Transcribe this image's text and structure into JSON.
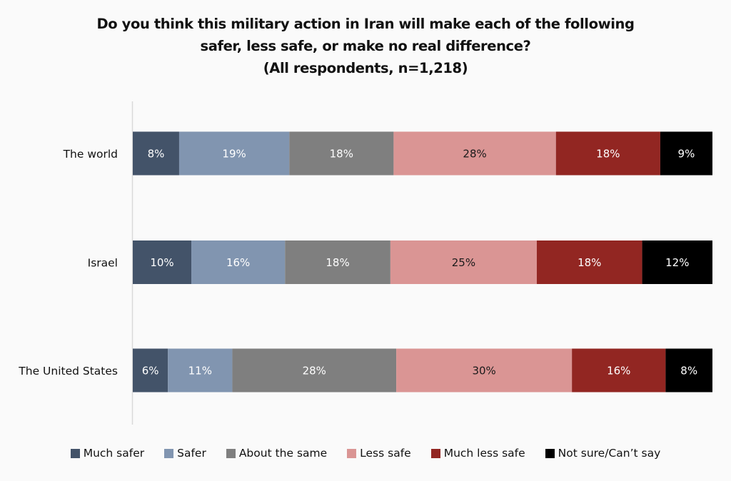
{
  "chart_data": {
    "type": "bar",
    "orientation": "horizontal",
    "stacked": true,
    "title": "Do you think this military action in Iran will make each of the following safer, less safe, or make no real difference?",
    "title_lines": [
      "Do you think this military action in Iran will make each of the following",
      "safer, less safe, or make no real difference?",
      "(All respondents, n=1,218)"
    ],
    "subtitle": "(All respondents, n=1,218)",
    "xlabel": "",
    "ylabel": "",
    "xlim": [
      0,
      100
    ],
    "grid": false,
    "legend_position": "bottom",
    "categories": [
      "The world",
      "Israel",
      "The United States"
    ],
    "series": [
      {
        "name": "Much safer",
        "color": "#435369",
        "label_color": "#ffffff",
        "values": [
          8,
          10,
          6
        ]
      },
      {
        "name": "Safer",
        "color": "#8195b0",
        "label_color": "#ffffff",
        "values": [
          19,
          16,
          11
        ]
      },
      {
        "name": "About the same",
        "color": "#7f7f7f",
        "label_color": "#ffffff",
        "values": [
          18,
          18,
          28
        ]
      },
      {
        "name": "Less safe",
        "color": "#da9594",
        "label_color": "#1a1a1a",
        "values": [
          28,
          25,
          30
        ]
      },
      {
        "name": "Much less safe",
        "color": "#922622",
        "label_color": "#ffffff",
        "values": [
          18,
          18,
          16
        ]
      },
      {
        "name": "Not sure/Can’t say",
        "color": "#000000",
        "label_color": "#ffffff",
        "values": [
          9,
          12,
          8
        ]
      }
    ],
    "value_suffix": "%"
  }
}
